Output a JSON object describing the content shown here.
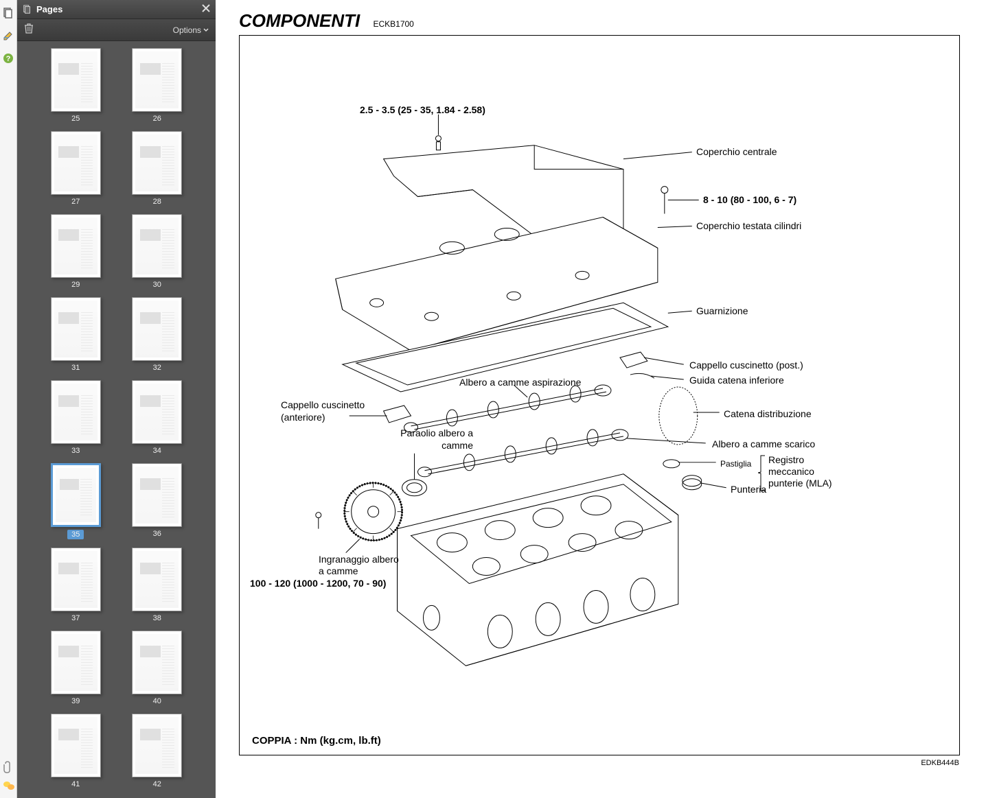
{
  "panel": {
    "title": "Pages",
    "options_label": "Options"
  },
  "thumbnails": {
    "start": 25,
    "end": 42,
    "selected": 35
  },
  "document": {
    "title": "COMPONENTI",
    "code": "ECKB1700",
    "ref": "EDKB444B",
    "footer": "COPPIA : Nm (kg.cm, lb.ft)"
  },
  "labels": {
    "torque_top": "2.5 - 3.5 (25 - 35, 1.84 - 2.58)",
    "coperchio_centrale": "Coperchio centrale",
    "torque_right": "8 - 10 (80 - 100, 6 - 7)",
    "coperchio_testata": "Coperchio testata cilindri",
    "guarnizione": "Guarnizione",
    "cappello_post": "Cappello cuscinetto (post.)",
    "guida_catena": "Guida catena inferiore",
    "albero_aspirazione": "Albero a camme aspirazione",
    "cappello_ant_1": "Cappello cuscinetto",
    "cappello_ant_2": "(anteriore)",
    "catena_dist": "Catena distribuzione",
    "paraolio_1": "Paraolio albero a",
    "paraolio_2": "camme",
    "albero_scarico": "Albero a camme scarico",
    "pastiglia": "Pastiglia",
    "registro_1": "Registro",
    "registro_2": "meccanico",
    "registro_3": "punterie (MLA)",
    "punteria": "Punteria",
    "ingranaggio_1": "Ingranaggio albero",
    "ingranaggio_2": "a camme",
    "torque_bottom": "100 - 120 (1000 - 1200, 70 - 90)"
  }
}
